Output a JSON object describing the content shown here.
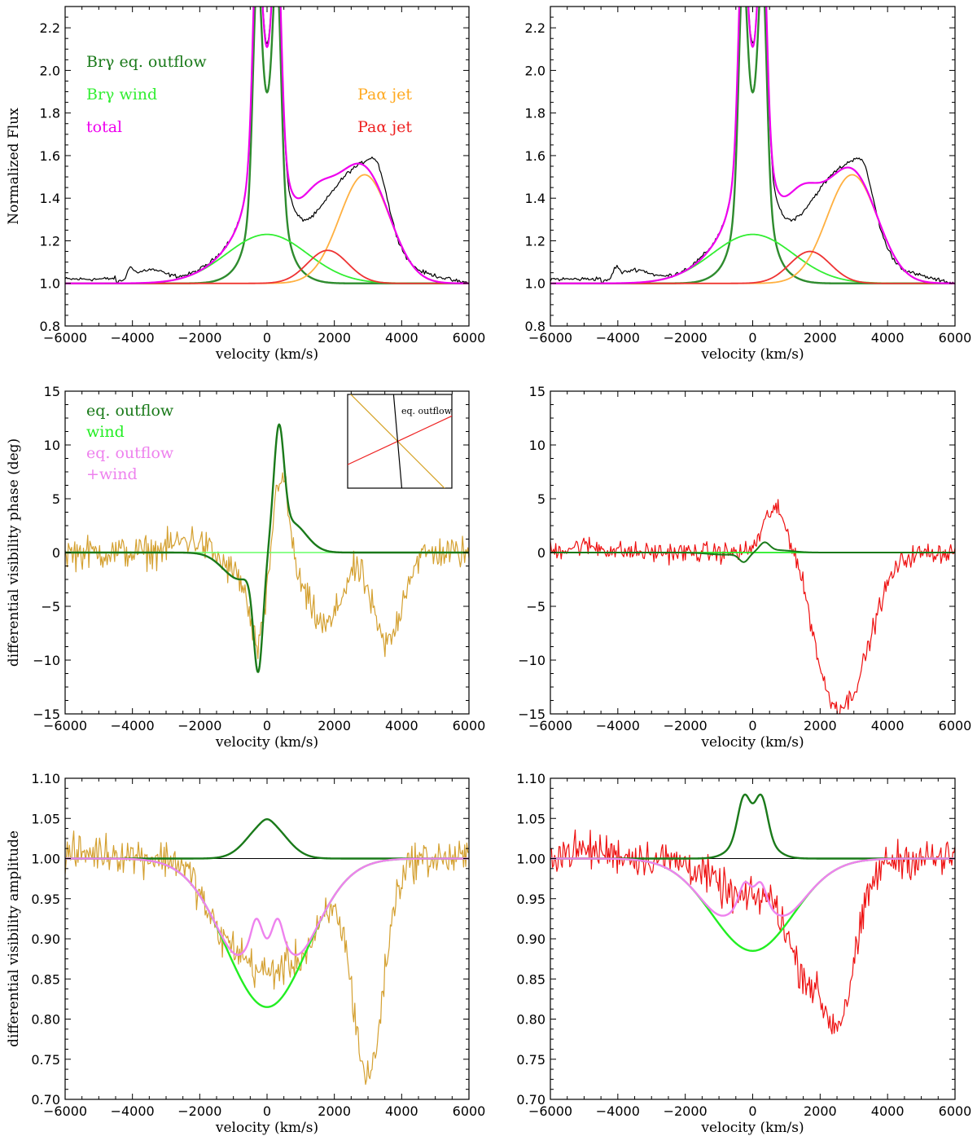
{
  "chart_data": [
    {
      "id": "p1",
      "type": "line",
      "panel": "top-left",
      "xlabel": "velocity (km/s)",
      "ylabel": "Normalized Flux",
      "xlim": [
        -6000,
        6000
      ],
      "ylim": [
        0.8,
        2.3
      ],
      "xticks": [
        -6000,
        -4000,
        -2000,
        0,
        2000,
        4000,
        6000
      ],
      "xtick_labels": [
        "−6000",
        "−4000",
        "−2000",
        "0",
        "2000",
        "4000",
        "6000"
      ],
      "yticks": [
        0.8,
        1.0,
        1.2,
        1.4,
        1.6,
        1.8,
        2.0,
        2.2
      ],
      "ytick_labels": [
        "0.8",
        "1.0",
        "1.2",
        "1.4",
        "1.6",
        "1.8",
        "2.0",
        "2.2"
      ],
      "legend": [
        {
          "text": "Brγ eq. outflow",
          "color": "#1a7a1a",
          "position": "top-left",
          "row": 0
        },
        {
          "text": "Brγ wind",
          "color": "#33ee33",
          "position": "top-left",
          "row": 1
        },
        {
          "text": "total",
          "color": "#ee00ee",
          "position": "top-left",
          "row": 2
        },
        {
          "text": "Paα jet",
          "color": "#ffaa22",
          "position": "top-right",
          "row": 1
        },
        {
          "text": "Paα jet",
          "color": "#ee2222",
          "position": "top-right",
          "row": 2
        }
      ],
      "series": [
        {
          "name": "observed",
          "color": "#000000",
          "width": 1.2,
          "model": {
            "kind": "observed",
            "variant": 1
          }
        },
        {
          "name": "Brγ eq. outflow",
          "color": "#2e8b2e",
          "width": 2.4,
          "model": {
            "kind": "eqflux"
          }
        },
        {
          "name": "Brγ wind",
          "color": "#33ee33",
          "width": 1.8,
          "model": {
            "kind": "gauss",
            "base": 1,
            "amp": 0.23,
            "mu": 0,
            "sigma": 1200
          }
        },
        {
          "name": "Paα jet (orange)",
          "color": "#ffb040",
          "width": 1.8,
          "model": {
            "kind": "gauss",
            "base": 1,
            "amp": 0.51,
            "mu": 2900,
            "sigma": 750
          }
        },
        {
          "name": "Paα jet (red)",
          "color": "#ee3333",
          "width": 1.8,
          "model": {
            "kind": "gauss",
            "base": 1,
            "amp": 0.155,
            "mu": 1800,
            "sigma": 600
          }
        },
        {
          "name": "total",
          "color": "#ee00ee",
          "width": 2.2,
          "model": {
            "kind": "total"
          }
        }
      ]
    },
    {
      "id": "p2",
      "type": "line",
      "panel": "top-right",
      "xlabel": "velocity (km/s)",
      "ylabel": "",
      "xlim": [
        -6000,
        6000
      ],
      "ylim": [
        0.8,
        2.3
      ],
      "xticks": [
        -6000,
        -4000,
        -2000,
        0,
        2000,
        4000,
        6000
      ],
      "xtick_labels": [
        "−6000",
        "−4000",
        "−2000",
        "0",
        "2000",
        "4000",
        "6000"
      ],
      "yticks": [
        0.8,
        1.0,
        1.2,
        1.4,
        1.6,
        1.8,
        2.0,
        2.2
      ],
      "ytick_labels": [
        "0.8",
        "1.0",
        "1.2",
        "1.4",
        "1.6",
        "1.8",
        "2.0",
        "2.2"
      ],
      "legend": [],
      "series": [
        {
          "name": "observed",
          "color": "#000000",
          "width": 1.2,
          "model": {
            "kind": "observed",
            "variant": 2
          }
        },
        {
          "name": "Brγ eq. outflow",
          "color": "#2e8b2e",
          "width": 2.4,
          "model": {
            "kind": "eqflux"
          }
        },
        {
          "name": "Brγ wind",
          "color": "#33ee33",
          "width": 1.8,
          "model": {
            "kind": "gauss",
            "base": 1,
            "amp": 0.23,
            "mu": 0,
            "sigma": 1200
          }
        },
        {
          "name": "Paα jet (orange)",
          "color": "#ffb040",
          "width": 1.8,
          "model": {
            "kind": "gauss",
            "base": 1,
            "amp": 0.51,
            "mu": 2950,
            "sigma": 750
          }
        },
        {
          "name": "Paα jet (red)",
          "color": "#ee3333",
          "width": 1.8,
          "model": {
            "kind": "gauss",
            "base": 1,
            "amp": 0.15,
            "mu": 1700,
            "sigma": 600
          }
        },
        {
          "name": "total",
          "color": "#ee00ee",
          "width": 2.2,
          "model": {
            "kind": "total"
          }
        }
      ]
    },
    {
      "id": "p3",
      "type": "line",
      "panel": "middle-left",
      "xlabel": "velocity (km/s)",
      "ylabel": "differential visibility phase (deg)",
      "xlim": [
        -6000,
        6000
      ],
      "ylim": [
        -15,
        15
      ],
      "xticks": [
        -6000,
        -4000,
        -2000,
        0,
        2000,
        4000,
        6000
      ],
      "xtick_labels": [
        "−6000",
        "−4000",
        "−2000",
        "0",
        "2000",
        "4000",
        "6000"
      ],
      "yticks": [
        -15,
        -10,
        -5,
        0,
        5,
        10,
        15
      ],
      "ytick_labels": [
        "−15",
        "−10",
        "−5",
        "0",
        "5",
        "10",
        "15"
      ],
      "legend": [
        {
          "text": "eq. outflow",
          "color": "#1a7a1a",
          "position": "top-left",
          "row": 0
        },
        {
          "text": "wind",
          "color": "#22ee22",
          "position": "top-left",
          "row": 1
        },
        {
          "text": "eq. outflow",
          "color": "#ee82ee",
          "position": "top-left",
          "row": 2
        },
        {
          "text": "+wind",
          "color": "#ee82ee",
          "position": "top-left",
          "row": 3
        }
      ],
      "inset": {
        "label": "eq. outflow",
        "lines": [
          {
            "name": "orange baseline",
            "color": "#d4a020",
            "angle_deg": -45
          },
          {
            "name": "red baseline",
            "color": "#ee2222",
            "angle_deg": 25
          },
          {
            "name": "eq. outflow axis",
            "color": "#000000",
            "angle_deg": -85
          }
        ]
      },
      "series": [
        {
          "name": "observed phase",
          "color": "#d4a030",
          "width": 1.2,
          "model": {
            "kind": "phase_obs",
            "variant": "orange"
          }
        },
        {
          "name": "wind",
          "color": "#66ff66",
          "width": 1.4,
          "model": {
            "kind": "const",
            "value": 0
          }
        },
        {
          "name": "eq. outflow",
          "color": "#1a7a1a",
          "width": 2.4,
          "model": {
            "kind": "phase_eq",
            "scale": 1
          }
        }
      ]
    },
    {
      "id": "p4",
      "type": "line",
      "panel": "middle-right",
      "xlabel": "velocity (km/s)",
      "ylabel": "",
      "xlim": [
        -6000,
        6000
      ],
      "ylim": [
        -15,
        15
      ],
      "xticks": [
        -6000,
        -4000,
        -2000,
        0,
        2000,
        4000,
        6000
      ],
      "xtick_labels": [
        "−6000",
        "−4000",
        "−2000",
        "0",
        "2000",
        "4000",
        "6000"
      ],
      "yticks": [
        -15,
        -10,
        -5,
        0,
        5,
        10,
        15
      ],
      "ytick_labels": [
        "−15",
        "−10",
        "−5",
        "0",
        "5",
        "10",
        "15"
      ],
      "legend": [],
      "series": [
        {
          "name": "observed phase",
          "color": "#ee1111",
          "width": 1.2,
          "model": {
            "kind": "phase_obs",
            "variant": "red"
          }
        },
        {
          "name": "wind",
          "color": "#22ee22",
          "width": 1.8,
          "model": {
            "kind": "const",
            "value": 0
          }
        },
        {
          "name": "eq. outflow",
          "color": "#1a7a1a",
          "width": 2.0,
          "model": {
            "kind": "phase_eq",
            "scale": 0.08
          }
        }
      ]
    },
    {
      "id": "p5",
      "type": "line",
      "panel": "bottom-left",
      "xlabel": "velocity (km/s)",
      "ylabel": "differential visibility amplitude",
      "xlim": [
        -6000,
        6000
      ],
      "ylim": [
        0.7,
        1.1
      ],
      "xticks": [
        -6000,
        -4000,
        -2000,
        0,
        2000,
        4000,
        6000
      ],
      "xtick_labels": [
        "−6000",
        "−4000",
        "−2000",
        "0",
        "2000",
        "4000",
        "6000"
      ],
      "yticks": [
        0.7,
        0.75,
        0.8,
        0.85,
        0.9,
        0.95,
        1.0,
        1.05,
        1.1
      ],
      "ytick_labels": [
        "0.70",
        "0.75",
        "0.80",
        "0.85",
        "0.90",
        "0.95",
        "1.00",
        "1.05",
        "1.10"
      ],
      "legend": [],
      "series": [
        {
          "name": "observed amplitude",
          "color": "#d4a030",
          "width": 1.2,
          "model": {
            "kind": "amp_obs",
            "variant": "orange"
          }
        },
        {
          "name": "reference",
          "color": "#000000",
          "width": 1.0,
          "model": {
            "kind": "const",
            "value": 1
          }
        },
        {
          "name": "eq. outflow",
          "color": "#1a7a1a",
          "width": 2.4,
          "model": {
            "kind": "amp_eq",
            "variant": "single"
          }
        },
        {
          "name": "wind",
          "color": "#22ee22",
          "width": 2.4,
          "model": {
            "kind": "gauss",
            "base": 1,
            "amp": -0.185,
            "mu": 0,
            "sigma": 1200
          }
        },
        {
          "name": "eq. outflow +wind",
          "color": "#ee82ee",
          "width": 2.4,
          "model": {
            "kind": "amp_comb",
            "variant": "orange"
          }
        }
      ]
    },
    {
      "id": "p6",
      "type": "line",
      "panel": "bottom-right",
      "xlabel": "velocity (km/s)",
      "ylabel": "",
      "xlim": [
        -6000,
        6000
      ],
      "ylim": [
        0.7,
        1.1
      ],
      "xticks": [
        -6000,
        -4000,
        -2000,
        0,
        2000,
        4000,
        6000
      ],
      "xtick_labels": [
        "−6000",
        "−4000",
        "−2000",
        "0",
        "2000",
        "4000",
        "6000"
      ],
      "yticks": [
        0.7,
        0.75,
        0.8,
        0.85,
        0.9,
        0.95,
        1.0,
        1.05,
        1.1
      ],
      "ytick_labels": [
        "0.70",
        "0.75",
        "0.80",
        "0.85",
        "0.90",
        "0.95",
        "1.00",
        "1.05",
        "1.10"
      ],
      "legend": [],
      "series": [
        {
          "name": "observed amplitude",
          "color": "#ee1111",
          "width": 1.2,
          "model": {
            "kind": "amp_obs",
            "variant": "red"
          }
        },
        {
          "name": "reference",
          "color": "#000000",
          "width": 1.0,
          "model": {
            "kind": "const",
            "value": 1
          }
        },
        {
          "name": "eq. outflow",
          "color": "#1a7a1a",
          "width": 2.4,
          "model": {
            "kind": "amp_eq",
            "variant": "double"
          }
        },
        {
          "name": "wind",
          "color": "#22ee22",
          "width": 2.4,
          "model": {
            "kind": "gauss",
            "base": 1,
            "amp": -0.115,
            "mu": 0,
            "sigma": 1200
          }
        },
        {
          "name": "eq. outflow +wind",
          "color": "#ee82ee",
          "width": 2.4,
          "model": {
            "kind": "amp_comb",
            "variant": "red"
          }
        }
      ]
    }
  ]
}
